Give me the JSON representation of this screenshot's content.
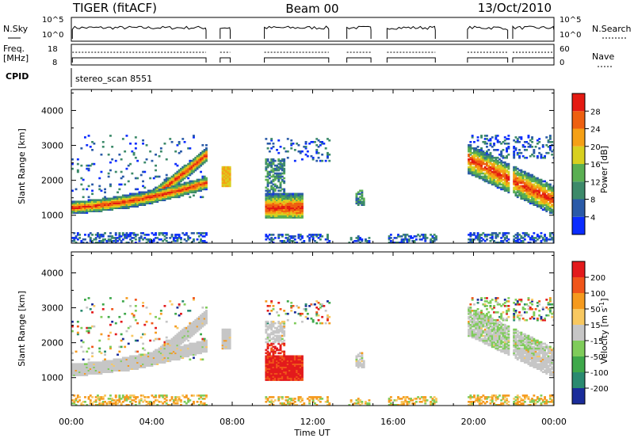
{
  "header": {
    "radar": "TIGER (fitACF)",
    "beam": "Beam 00",
    "date": "13/Oct/2010"
  },
  "strip_labels": {
    "nsky": "N.Sky",
    "nsearch": "N.Search",
    "freq_line1": "Freq.",
    "freq_line2": "[MHz]",
    "nave": "Nave",
    "cpid": "CPID",
    "program": "stereo_scan 8551",
    "noise_ticks": [
      "10^5",
      "10^0"
    ],
    "freq_ticks": [
      "18",
      "8"
    ],
    "nave_ticks": [
      "60",
      "0"
    ]
  },
  "colors": {
    "power_scale": [
      "#0a2cff",
      "#2a5aa8",
      "#3d8a6a",
      "#5aaf52",
      "#d8d01f",
      "#f5a015",
      "#ee6010",
      "#e41a12"
    ],
    "velocity_scale": [
      "#e31a1c",
      "#f0551a",
      "#f59a1e",
      "#f8c860",
      "#c6c6c6",
      "#7fcc5a",
      "#3ea84a",
      "#2a8a70",
      "#1a2c9a"
    ]
  },
  "chart_data": [
    {
      "type": "heatmap",
      "name": "power",
      "xlabel": "",
      "ylabel": "Slant Range [km]",
      "x_ticks": [
        "00:00",
        "04:00",
        "08:00",
        "12:00",
        "16:00",
        "20:00",
        "00:00"
      ],
      "xlim_hours": [
        0,
        24
      ],
      "y_ticks": [
        1000,
        2000,
        3000,
        4000
      ],
      "ylim": [
        200,
        4600
      ],
      "colorbar_label": "Power [dB]",
      "colorbar_ticks": [
        4,
        8,
        12,
        16,
        20,
        24,
        28
      ],
      "colorbar_range": [
        0,
        32
      ],
      "data_gaps_hours": [
        [
          6.7,
          7.4
        ],
        [
          7.9,
          9.6
        ],
        [
          12.8,
          13.7
        ],
        [
          14.9,
          15.7
        ],
        [
          18.1,
          19.7
        ],
        [
          21.7,
          21.95
        ]
      ]
    },
    {
      "type": "heatmap",
      "name": "velocity",
      "xlabel": "Time UT",
      "ylabel": "Slant Range [km]",
      "x_ticks": [
        "00:00",
        "04:00",
        "08:00",
        "12:00",
        "16:00",
        "20:00",
        "00:00"
      ],
      "xlim_hours": [
        0,
        24
      ],
      "y_ticks": [
        1000,
        2000,
        3000,
        4000
      ],
      "ylim": [
        200,
        4600
      ],
      "colorbar_label_main": "Velocity [m s",
      "colorbar_label_sup": "-1",
      "colorbar_label_end": "]",
      "colorbar_ticks": [
        "200",
        "100",
        "50",
        "15",
        "-15",
        "-50",
        "-100",
        "-200"
      ],
      "data_gaps_hours": [
        [
          6.7,
          7.4
        ],
        [
          7.9,
          9.6
        ],
        [
          12.8,
          13.7
        ],
        [
          14.9,
          15.7
        ],
        [
          18.1,
          19.7
        ],
        [
          21.7,
          21.95
        ]
      ]
    }
  ]
}
